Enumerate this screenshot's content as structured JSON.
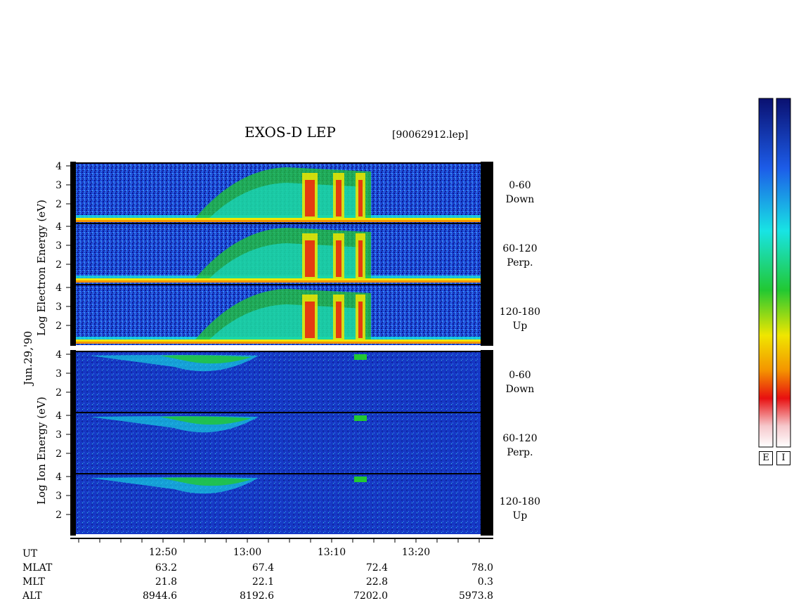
{
  "header": {
    "title": "EXOS-D LEP",
    "file": "[90062912.lep]"
  },
  "side_labels": {
    "date": "Jun.29,'90",
    "electron_axis": "Log  Electron  Energy (eV)",
    "ion_axis": "Log  Ion  Energy (eV)"
  },
  "colors": {
    "low": "#0a1a8c",
    "mid_blue": "#1c5ce8",
    "cyan": "#18e4e4",
    "green": "#22c832",
    "yellow": "#f0e600",
    "orange": "#f49400",
    "red": "#e81010",
    "pink": "#f6c8cc"
  },
  "colorbar": {
    "left_label": "E",
    "right_label": "I"
  },
  "chart_data": {
    "type": "heatmap",
    "title": "EXOS-D LEP",
    "xlabel": "UT",
    "x_ticks": [
      "12:50",
      "13:00",
      "13:10",
      "13:20"
    ],
    "panels": [
      {
        "species": "Electron",
        "pitch": [
          "0-60",
          "Down"
        ],
        "y_ticks": [
          "4",
          "3",
          "2"
        ],
        "ylabel": "Log Electron Energy (eV)"
      },
      {
        "species": "Electron",
        "pitch": [
          "60-120",
          "Perp."
        ],
        "y_ticks": [
          "4",
          "3",
          "2"
        ],
        "ylabel": "Log Electron Energy (eV)"
      },
      {
        "species": "Electron",
        "pitch": [
          "120-180",
          "Up"
        ],
        "y_ticks": [
          "4",
          "3",
          "2"
        ],
        "ylabel": "Log Electron Energy (eV)"
      },
      {
        "species": "Ion",
        "pitch": [
          "0-60",
          "Down"
        ],
        "y_ticks": [
          "4",
          "3",
          "2"
        ],
        "ylabel": "Log Ion Energy (eV)"
      },
      {
        "species": "Ion",
        "pitch": [
          "60-120",
          "Perp."
        ],
        "y_ticks": [
          "4",
          "3",
          "2"
        ],
        "ylabel": "Log Ion Energy (eV)"
      },
      {
        "species": "Ion",
        "pitch": [
          "120-180",
          "Up"
        ],
        "y_ticks": [
          "4",
          "3",
          "2"
        ],
        "ylabel": "Log Ion Energy (eV)"
      }
    ],
    "orbit_table": {
      "rows": [
        {
          "label": "UT",
          "values": [
            "",
            "",
            "",
            ""
          ]
        },
        {
          "label": "MLAT",
          "values": [
            "63.2",
            "67.4",
            "72.4",
            "78.0"
          ]
        },
        {
          "label": "MLT",
          "values": [
            "21.8",
            "22.1",
            "22.8",
            "0.3"
          ]
        },
        {
          "label": "ALT",
          "values": [
            "8944.6",
            "8192.6",
            "7202.0",
            "5973.8"
          ]
        }
      ]
    }
  }
}
